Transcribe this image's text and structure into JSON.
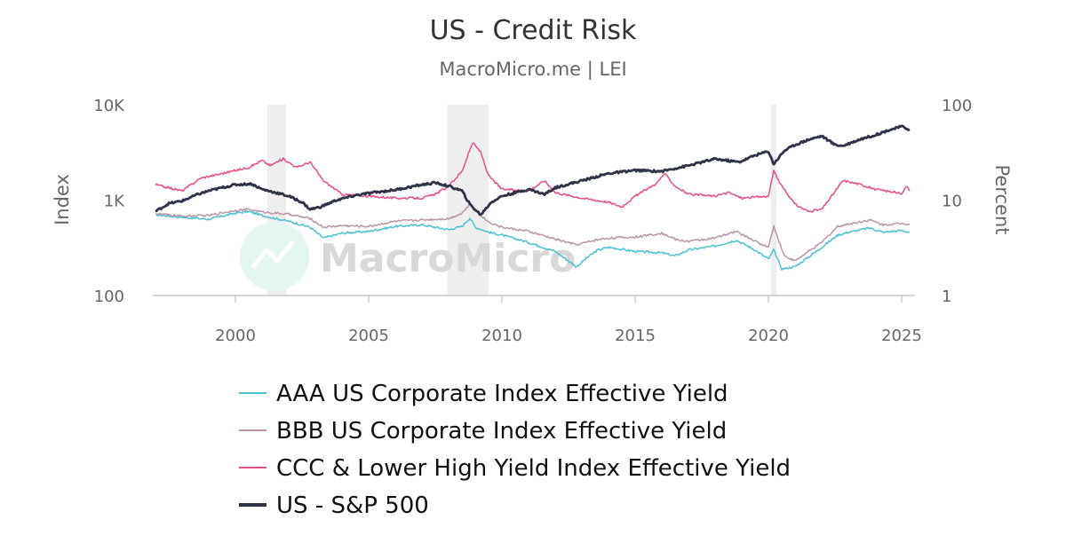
{
  "chart_data": {
    "type": "line",
    "title": "US - Credit Risk",
    "subtitle": "MacroMicro.me | LEI",
    "watermark": "MacroMicro",
    "left_axis": {
      "title": "Index",
      "scale": "log",
      "range": [
        100,
        10000
      ],
      "ticks": [
        100,
        1000,
        10000
      ],
      "tick_labels": [
        "100",
        "1K",
        "10K"
      ]
    },
    "right_axis": {
      "title": "Percent",
      "scale": "log",
      "range": [
        1,
        100
      ],
      "ticks": [
        1,
        10,
        100
      ],
      "tick_labels": [
        "1",
        "10",
        "100"
      ]
    },
    "x_axis": {
      "range": [
        1996.9,
        2025.5
      ],
      "ticks": [
        2000,
        2005,
        2010,
        2015,
        2020,
        2025
      ],
      "tick_labels": [
        "2000",
        "2005",
        "2010",
        "2015",
        "2020",
        "2025"
      ]
    },
    "recessions": [
      [
        2001.2,
        2001.9
      ],
      [
        2007.95,
        2009.5
      ],
      [
        2020.1,
        2020.3
      ]
    ],
    "series": [
      {
        "name": "AAA US Corporate Index Effective Yield",
        "axis": "right",
        "color": "#4fc1cf",
        "line_width": 1.5,
        "points": [
          [
            1997.0,
            7.0
          ],
          [
            1998.0,
            6.6
          ],
          [
            1999.0,
            6.3
          ],
          [
            2000.0,
            7.3
          ],
          [
            2000.5,
            7.6
          ],
          [
            2001.0,
            6.9
          ],
          [
            2002.0,
            6.0
          ],
          [
            2002.8,
            5.2
          ],
          [
            2003.3,
            4.0
          ],
          [
            2004.0,
            4.5
          ],
          [
            2005.0,
            4.7
          ],
          [
            2006.0,
            5.3
          ],
          [
            2007.0,
            5.5
          ],
          [
            2008.0,
            4.9
          ],
          [
            2008.5,
            5.3
          ],
          [
            2008.8,
            6.5
          ],
          [
            2009.0,
            5.2
          ],
          [
            2009.5,
            4.6
          ],
          [
            2010.0,
            4.3
          ],
          [
            2011.0,
            3.6
          ],
          [
            2012.0,
            2.9
          ],
          [
            2012.8,
            2.0
          ],
          [
            2013.2,
            2.5
          ],
          [
            2013.6,
            3.0
          ],
          [
            2014.0,
            3.2
          ],
          [
            2015.0,
            2.9
          ],
          [
            2016.0,
            2.8
          ],
          [
            2016.5,
            2.6
          ],
          [
            2017.0,
            3.0
          ],
          [
            2018.0,
            3.3
          ],
          [
            2018.8,
            3.8
          ],
          [
            2019.5,
            3.0
          ],
          [
            2020.0,
            2.4
          ],
          [
            2020.2,
            3.0
          ],
          [
            2020.5,
            1.9
          ],
          [
            2021.0,
            2.0
          ],
          [
            2022.0,
            3.2
          ],
          [
            2022.6,
            4.3
          ],
          [
            2023.0,
            4.6
          ],
          [
            2023.8,
            5.1
          ],
          [
            2024.3,
            4.6
          ],
          [
            2025.0,
            4.8
          ],
          [
            2025.3,
            4.6
          ]
        ]
      },
      {
        "name": "BBB US Corporate Index Effective Yield",
        "axis": "right",
        "color": "#b897aa",
        "line_width": 1.5,
        "points": [
          [
            1997.0,
            7.2
          ],
          [
            1998.0,
            6.8
          ],
          [
            1999.0,
            6.9
          ],
          [
            2000.0,
            7.8
          ],
          [
            2000.5,
            8.0
          ],
          [
            2001.0,
            7.5
          ],
          [
            2002.0,
            7.1
          ],
          [
            2002.8,
            6.4
          ],
          [
            2003.3,
            5.2
          ],
          [
            2004.0,
            5.4
          ],
          [
            2005.0,
            5.3
          ],
          [
            2006.0,
            6.0
          ],
          [
            2007.0,
            6.2
          ],
          [
            2008.0,
            6.4
          ],
          [
            2008.5,
            7.3
          ],
          [
            2008.8,
            9.0
          ],
          [
            2009.0,
            7.8
          ],
          [
            2009.5,
            5.9
          ],
          [
            2010.0,
            5.2
          ],
          [
            2011.0,
            4.7
          ],
          [
            2012.0,
            3.9
          ],
          [
            2012.8,
            3.4
          ],
          [
            2013.5,
            3.8
          ],
          [
            2014.0,
            4.0
          ],
          [
            2015.0,
            4.1
          ],
          [
            2016.0,
            4.5
          ],
          [
            2016.6,
            3.8
          ],
          [
            2017.0,
            3.7
          ],
          [
            2018.0,
            4.0
          ],
          [
            2018.8,
            4.7
          ],
          [
            2019.5,
            3.7
          ],
          [
            2020.0,
            3.2
          ],
          [
            2020.2,
            5.3
          ],
          [
            2020.6,
            2.6
          ],
          [
            2021.0,
            2.3
          ],
          [
            2022.0,
            3.6
          ],
          [
            2022.6,
            5.3
          ],
          [
            2023.0,
            5.6
          ],
          [
            2023.8,
            6.2
          ],
          [
            2024.3,
            5.5
          ],
          [
            2025.0,
            5.7
          ],
          [
            2025.3,
            5.6
          ]
        ]
      },
      {
        "name": "CCC & Lower High Yield Index Effective Yield",
        "axis": "right",
        "color": "#e84c8b",
        "line_width": 1.5,
        "points": [
          [
            1997.0,
            14.5
          ],
          [
            1998.0,
            12.5
          ],
          [
            1998.7,
            17.0
          ],
          [
            1999.5,
            19.0
          ],
          [
            2000.5,
            22.0
          ],
          [
            2001.0,
            26.0
          ],
          [
            2001.3,
            23.0
          ],
          [
            2001.8,
            27.0
          ],
          [
            2002.3,
            22.0
          ],
          [
            2002.8,
            25.0
          ],
          [
            2003.3,
            16.0
          ],
          [
            2004.0,
            11.5
          ],
          [
            2005.0,
            11.0
          ],
          [
            2006.0,
            10.5
          ],
          [
            2007.0,
            10.5
          ],
          [
            2007.5,
            11.5
          ],
          [
            2008.0,
            14.0
          ],
          [
            2008.5,
            20.0
          ],
          [
            2008.9,
            40.0
          ],
          [
            2009.2,
            32.0
          ],
          [
            2009.5,
            18.0
          ],
          [
            2010.0,
            13.0
          ],
          [
            2011.0,
            12.5
          ],
          [
            2011.6,
            16.0
          ],
          [
            2012.0,
            12.0
          ],
          [
            2013.0,
            10.5
          ],
          [
            2014.0,
            9.5
          ],
          [
            2014.5,
            8.5
          ],
          [
            2015.0,
            11.0
          ],
          [
            2015.8,
            15.0
          ],
          [
            2016.1,
            19.0
          ],
          [
            2016.5,
            14.0
          ],
          [
            2017.0,
            11.5
          ],
          [
            2018.0,
            11.0
          ],
          [
            2018.5,
            12.0
          ],
          [
            2019.0,
            10.5
          ],
          [
            2020.0,
            11.0
          ],
          [
            2020.2,
            20.0
          ],
          [
            2020.5,
            14.0
          ],
          [
            2021.0,
            9.0
          ],
          [
            2021.5,
            7.6
          ],
          [
            2022.0,
            8.0
          ],
          [
            2022.8,
            16.0
          ],
          [
            2023.3,
            15.0
          ],
          [
            2024.0,
            13.0
          ],
          [
            2024.8,
            12.0
          ],
          [
            2025.0,
            11.5
          ],
          [
            2025.2,
            14.0
          ],
          [
            2025.3,
            12.5
          ]
        ]
      },
      {
        "name": "US - S&P 500",
        "axis": "left",
        "color": "#2f3346",
        "line_width": 2.8,
        "points": [
          [
            1997.0,
            760
          ],
          [
            1997.5,
            920
          ],
          [
            1998.0,
            980
          ],
          [
            1998.6,
            1150
          ],
          [
            1999.0,
            1250
          ],
          [
            1999.5,
            1350
          ],
          [
            2000.0,
            1450
          ],
          [
            2000.6,
            1480
          ],
          [
            2001.0,
            1300
          ],
          [
            2001.5,
            1200
          ],
          [
            2002.0,
            1100
          ],
          [
            2002.5,
            950
          ],
          [
            2002.8,
            800
          ],
          [
            2003.2,
            850
          ],
          [
            2003.8,
            1000
          ],
          [
            2004.5,
            1120
          ],
          [
            2005.0,
            1180
          ],
          [
            2006.0,
            1280
          ],
          [
            2007.0,
            1450
          ],
          [
            2007.5,
            1520
          ],
          [
            2008.0,
            1400
          ],
          [
            2008.5,
            1250
          ],
          [
            2008.8,
            900
          ],
          [
            2009.2,
            700
          ],
          [
            2009.6,
            950
          ],
          [
            2010.0,
            1100
          ],
          [
            2011.0,
            1300
          ],
          [
            2011.6,
            1150
          ],
          [
            2012.0,
            1350
          ],
          [
            2013.0,
            1600
          ],
          [
            2014.0,
            1900
          ],
          [
            2015.0,
            2050
          ],
          [
            2016.0,
            2000
          ],
          [
            2016.5,
            2150
          ],
          [
            2017.0,
            2300
          ],
          [
            2018.0,
            2700
          ],
          [
            2018.9,
            2500
          ],
          [
            2019.5,
            2950
          ],
          [
            2020.0,
            3250
          ],
          [
            2020.2,
            2400
          ],
          [
            2020.6,
            3300
          ],
          [
            2021.0,
            3800
          ],
          [
            2021.5,
            4300
          ],
          [
            2022.0,
            4700
          ],
          [
            2022.5,
            3800
          ],
          [
            2022.8,
            3700
          ],
          [
            2023.0,
            3900
          ],
          [
            2023.5,
            4400
          ],
          [
            2024.0,
            4800
          ],
          [
            2024.5,
            5400
          ],
          [
            2025.0,
            5900
          ],
          [
            2025.3,
            5500
          ]
        ]
      }
    ],
    "legend": {
      "position": "bottom"
    }
  }
}
